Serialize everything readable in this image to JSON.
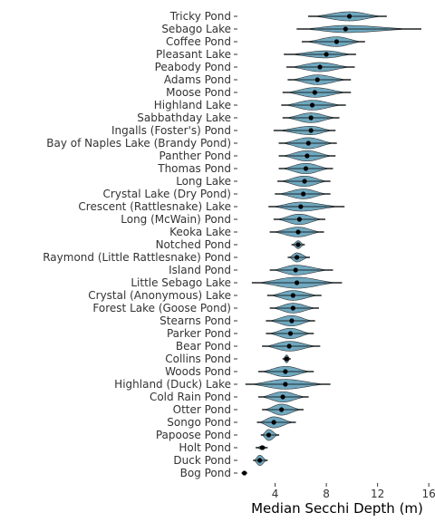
{
  "chart_data": {
    "type": "violin",
    "title": "",
    "xlabel": "Median Secchi Depth (m)",
    "ylabel": "",
    "xlim": [
      1.2,
      16.2
    ],
    "xticks": [
      4,
      8,
      12,
      16
    ],
    "grid": false,
    "legend": "none",
    "fill_color": "#6fa8bf",
    "point_color": "#000000",
    "categories": [
      "Tricky Pond",
      "Sebago Lake",
      "Coffee Pond",
      "Pleasant Lake",
      "Peabody Pond",
      "Adams Pond",
      "Moose Pond",
      "Highland Lake",
      "Sabbathday Lake",
      "Ingalls (Foster's) Pond",
      "Bay of Naples Lake (Brandy Pond)",
      "Panther Pond",
      "Thomas Pond",
      "Long Lake",
      "Crystal Lake (Dry Pond)",
      "Crescent (Rattlesnake) Lake",
      "Long (McWain) Pond",
      "Keoka Lake",
      "Notched Pond",
      "Raymond (Little Rattlesnake) Pond",
      "Island Pond",
      "Little Sebago Lake",
      "Crystal (Anonymous) Lake",
      "Forest Lake (Goose Pond)",
      "Stearns Pond",
      "Parker Pond",
      "Bear Pond",
      "Collins Pond",
      "Woods Pond",
      "Highland (Duck) Lake",
      "Cold Rain Pond",
      "Otter Pond",
      "Songo Pond",
      "Papoose Pond",
      "Holt Pond",
      "Duck Pond",
      "Bog Pond"
    ],
    "series": [
      {
        "median": 9.8,
        "min": 6.6,
        "max": 12.7,
        "width": 0.7
      },
      {
        "median": 9.5,
        "min": 5.7,
        "max": 15.4,
        "width": 0.55
      },
      {
        "median": 8.8,
        "min": 6.1,
        "max": 11.0,
        "width": 0.75
      },
      {
        "median": 8.0,
        "min": 4.7,
        "max": 10.3,
        "width": 0.55
      },
      {
        "median": 7.5,
        "min": 4.9,
        "max": 10.2,
        "width": 0.7
      },
      {
        "median": 7.3,
        "min": 5.0,
        "max": 9.9,
        "width": 0.75
      },
      {
        "median": 7.1,
        "min": 4.6,
        "max": 9.9,
        "width": 0.75
      },
      {
        "median": 6.9,
        "min": 4.5,
        "max": 9.5,
        "width": 0.75
      },
      {
        "median": 6.8,
        "min": 4.6,
        "max": 9.0,
        "width": 0.75
      },
      {
        "median": 6.8,
        "min": 3.9,
        "max": 8.7,
        "width": 0.65
      },
      {
        "median": 6.6,
        "min": 4.3,
        "max": 8.8,
        "width": 0.85
      },
      {
        "median": 6.5,
        "min": 4.3,
        "max": 8.7,
        "width": 0.8
      },
      {
        "median": 6.4,
        "min": 4.3,
        "max": 8.5,
        "width": 0.8
      },
      {
        "median": 6.3,
        "min": 4.2,
        "max": 8.3,
        "width": 0.8
      },
      {
        "median": 6.2,
        "min": 4.0,
        "max": 8.3,
        "width": 0.75
      },
      {
        "median": 6.0,
        "min": 3.5,
        "max": 9.4,
        "width": 0.7
      },
      {
        "median": 5.9,
        "min": 3.9,
        "max": 7.9,
        "width": 0.8
      },
      {
        "median": 5.8,
        "min": 3.6,
        "max": 7.8,
        "width": 0.75
      },
      {
        "median": 5.8,
        "min": 5.3,
        "max": 6.3,
        "width": 0.6
      },
      {
        "median": 5.7,
        "min": 5.0,
        "max": 6.7,
        "width": 0.7
      },
      {
        "median": 5.6,
        "min": 3.6,
        "max": 8.5,
        "width": 0.75
      },
      {
        "median": 5.7,
        "min": 2.2,
        "max": 9.2,
        "width": 0.85
      },
      {
        "median": 5.4,
        "min": 3.4,
        "max": 7.6,
        "width": 0.75
      },
      {
        "median": 5.4,
        "min": 3.6,
        "max": 7.4,
        "width": 0.75
      },
      {
        "median": 5.3,
        "min": 3.3,
        "max": 7.1,
        "width": 0.8
      },
      {
        "median": 5.2,
        "min": 3.3,
        "max": 7.0,
        "width": 0.8
      },
      {
        "median": 5.1,
        "min": 3.0,
        "max": 7.5,
        "width": 0.75
      },
      {
        "median": 4.9,
        "min": 4.6,
        "max": 5.2,
        "width": 0.6
      },
      {
        "median": 4.8,
        "min": 2.7,
        "max": 7.0,
        "width": 0.8
      },
      {
        "median": 4.8,
        "min": 1.7,
        "max": 8.3,
        "width": 0.75
      },
      {
        "median": 4.6,
        "min": 2.7,
        "max": 6.6,
        "width": 0.8
      },
      {
        "median": 4.5,
        "min": 3.0,
        "max": 6.2,
        "width": 0.85
      },
      {
        "median": 3.9,
        "min": 2.6,
        "max": 5.6,
        "width": 0.85
      },
      {
        "median": 3.5,
        "min": 2.9,
        "max": 4.3,
        "width": 0.85
      },
      {
        "median": 3.0,
        "min": 2.5,
        "max": 3.4,
        "width": 0.3
      },
      {
        "median": 2.8,
        "min": 2.3,
        "max": 3.4,
        "width": 0.8
      },
      {
        "median": 1.6,
        "min": 1.4,
        "max": 1.8,
        "width": 0.15
      }
    ]
  }
}
